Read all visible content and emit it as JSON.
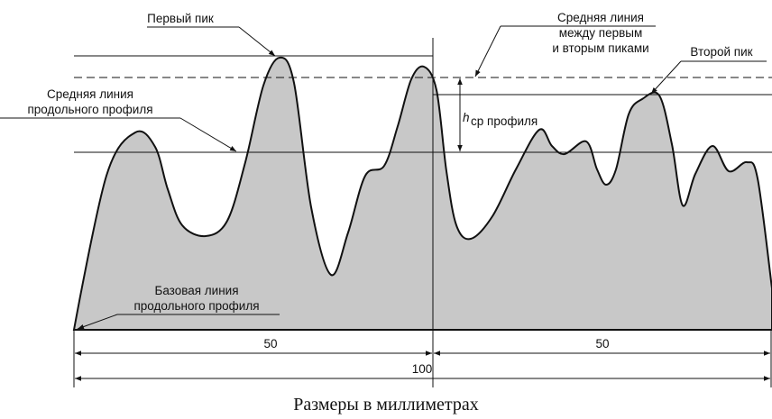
{
  "labels": {
    "first_peak": "Первый пик",
    "mid_between": [
      "Средняя линия",
      "между первым",
      "и вторым пиками"
    ],
    "second_peak": "Второй пик",
    "mean_line": [
      "Средняя линия",
      "продольного профиля"
    ],
    "base_line": [
      "Базовая линия",
      "продольного профиля"
    ],
    "h_symbol": "h",
    "h_sub": "ср профиля"
  },
  "dimensions": {
    "left": "50",
    "right": "50",
    "total": "100"
  },
  "caption": "Размеры в миллиметрах"
}
